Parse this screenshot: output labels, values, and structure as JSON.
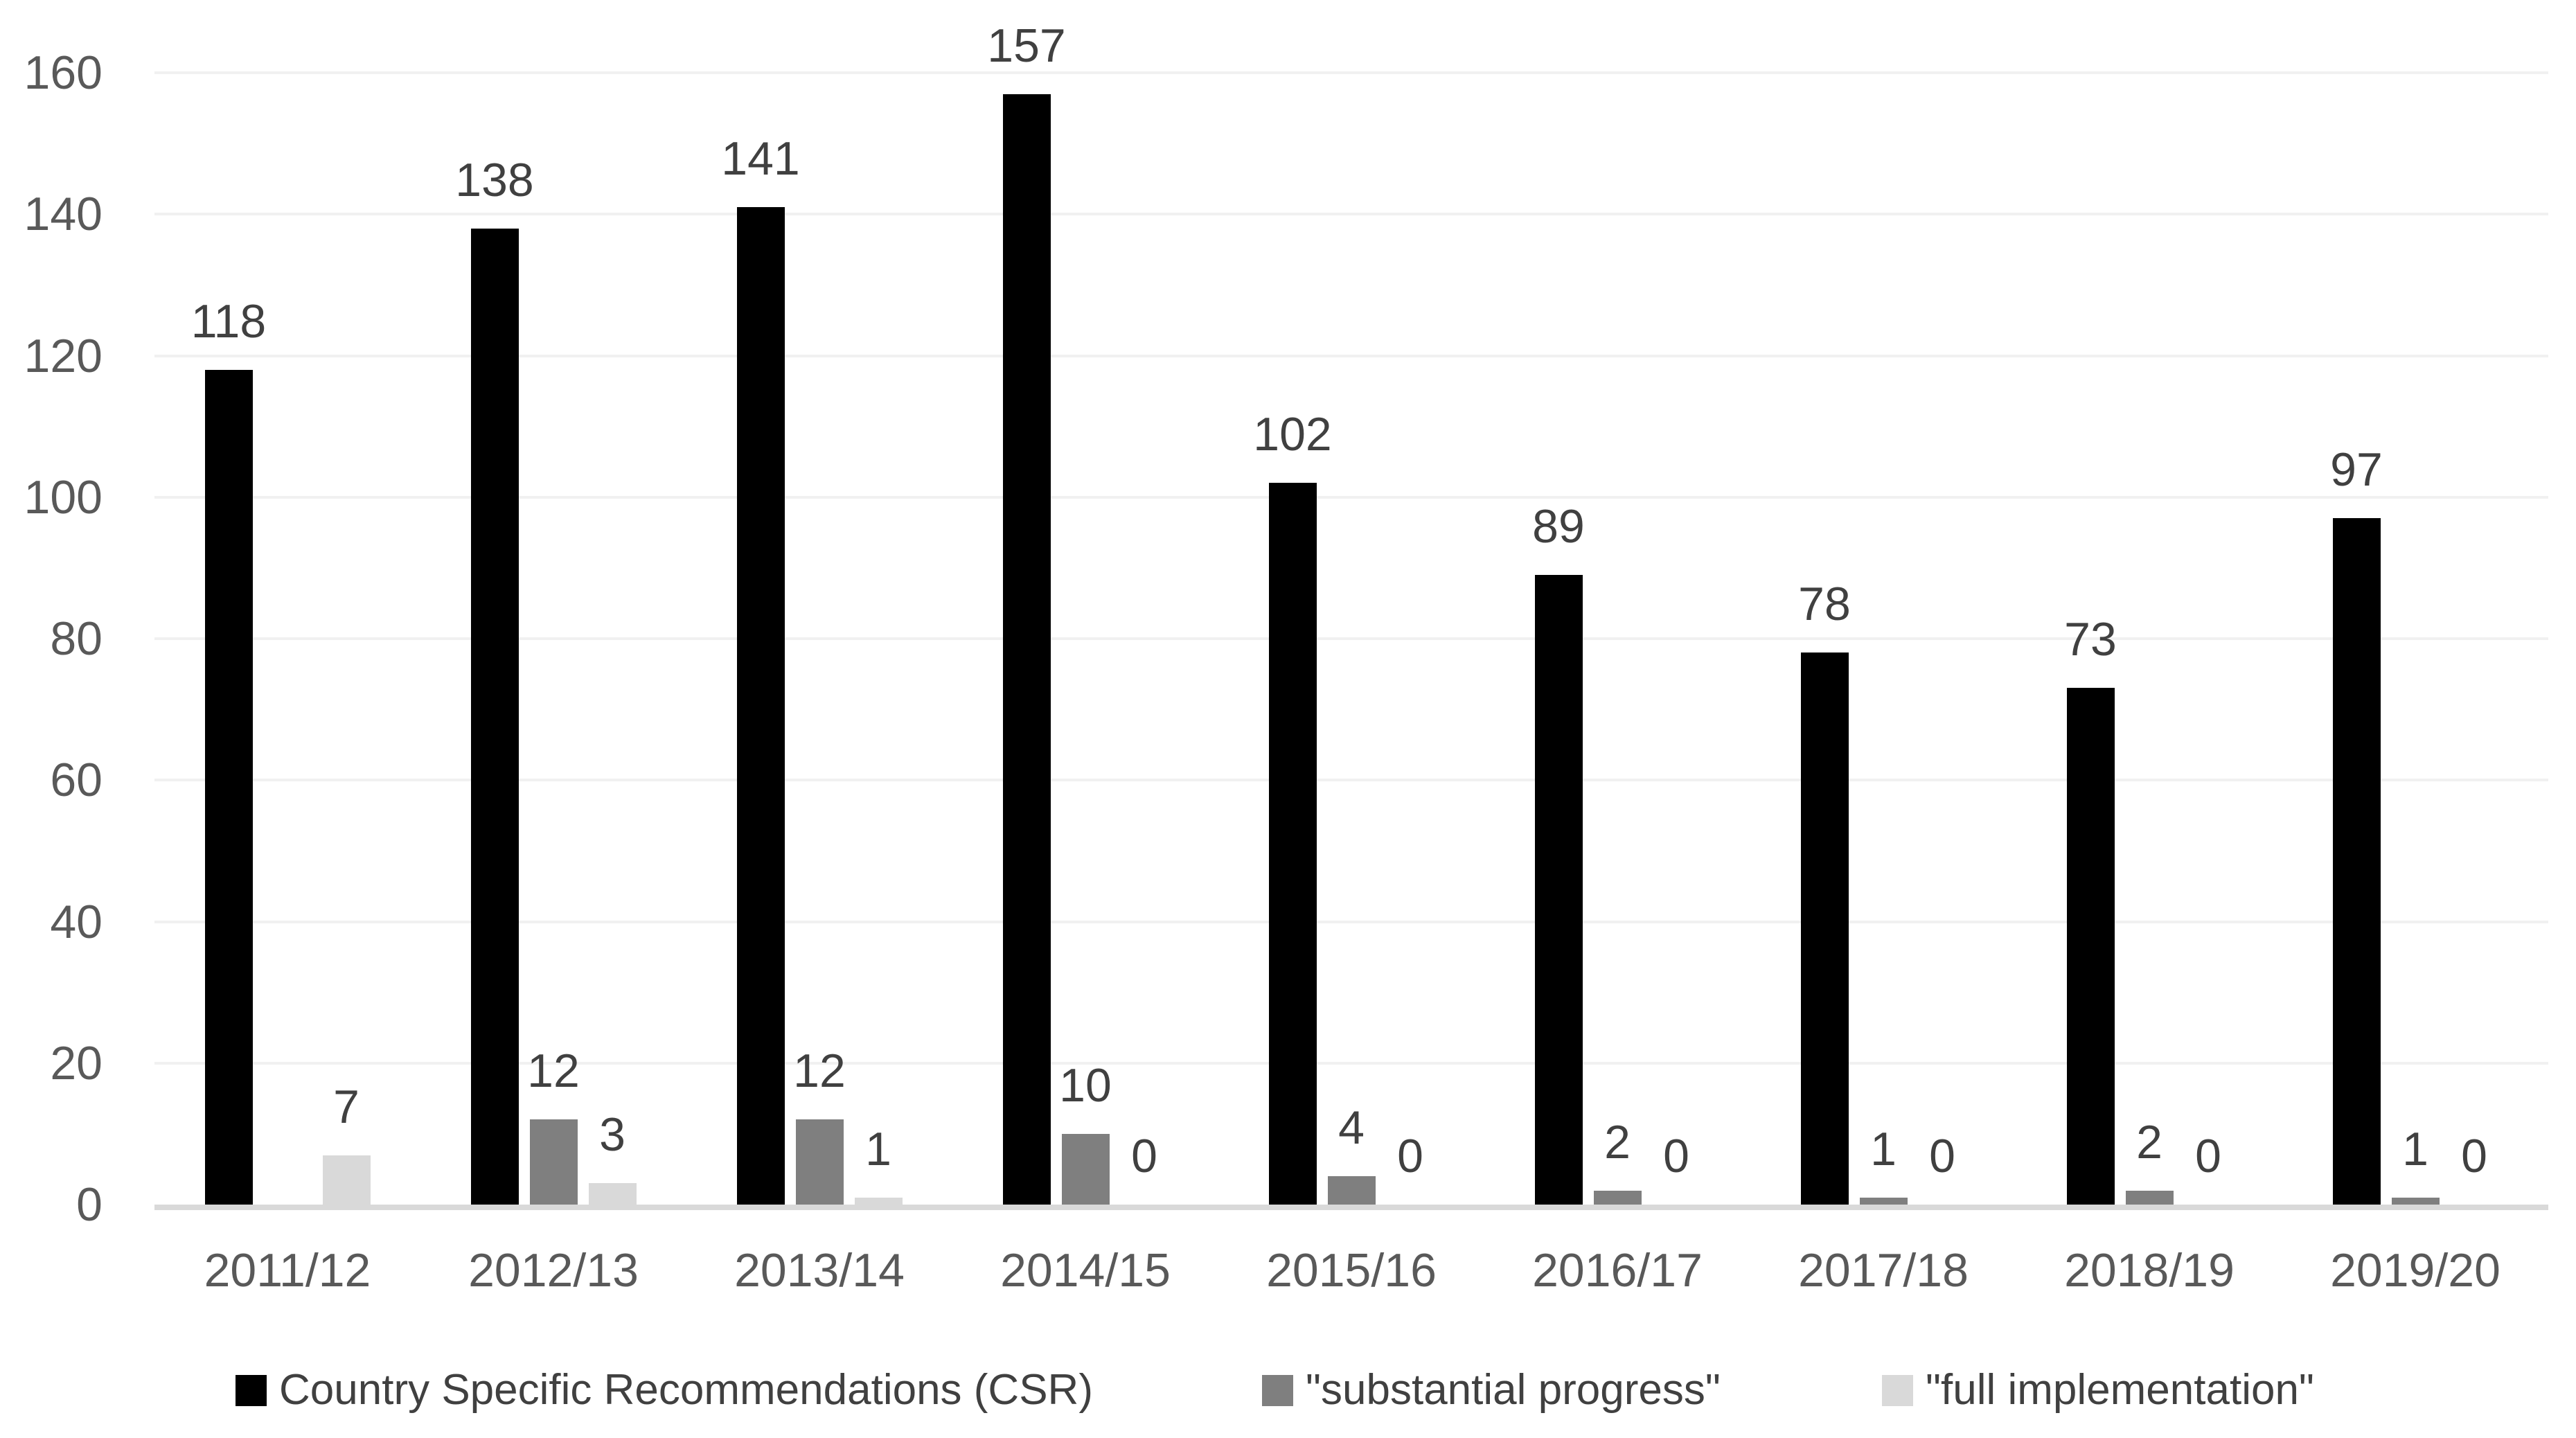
{
  "chart_data": {
    "type": "bar",
    "title": "",
    "xlabel": "",
    "ylabel": "",
    "categories": [
      "2011/12",
      "2012/13",
      "2013/14",
      "2014/15",
      "2015/16",
      "2016/17",
      "2017/18",
      "2018/19",
      "2019/20"
    ],
    "series": [
      {
        "name": "Country Specific Recommendations (CSR)",
        "color": "#000000",
        "values": [
          118,
          138,
          141,
          157,
          102,
          89,
          78,
          73,
          97
        ]
      },
      {
        "name": "\"substantial progress\"",
        "color": "#7f7f7f",
        "values": [
          null,
          12,
          12,
          10,
          4,
          2,
          1,
          2,
          1
        ]
      },
      {
        "name": "\"full implementation\"",
        "color": "#d9d9d9",
        "values": [
          7,
          3,
          1,
          0,
          0,
          0,
          0,
          0,
          0
        ]
      }
    ],
    "ylim": [
      0,
      160
    ],
    "yticks": [
      0,
      20,
      40,
      60,
      80,
      100,
      120,
      140,
      160
    ],
    "grid": true,
    "legend_position": "bottom",
    "colors": {
      "gridline": "#f1f1f1",
      "axis_line": "#d9d9d9",
      "tick_label": "#595959",
      "data_label": "#404040",
      "legend_label": "#404040",
      "background": "#ffffff"
    }
  }
}
